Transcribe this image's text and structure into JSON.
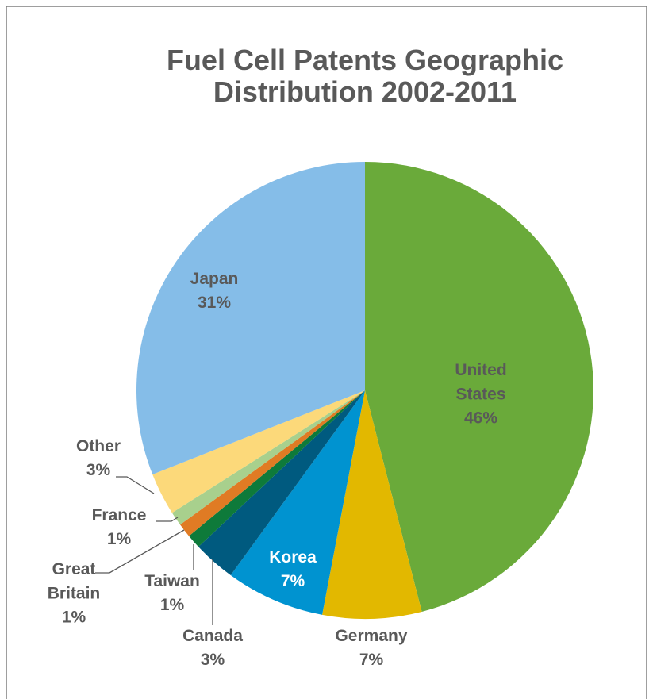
{
  "chart_data": {
    "type": "pie",
    "title": "Fuel Cell Patents Geographic Distribution 2002-2011",
    "categories": [
      "United States",
      "Germany",
      "Korea",
      "Canada",
      "Taiwan",
      "Great Britain",
      "France",
      "Other",
      "Japan"
    ],
    "values": [
      46,
      7,
      7,
      3,
      1,
      1,
      1,
      3,
      31
    ],
    "value_labels": [
      "46%",
      "7%",
      "7%",
      "3%",
      "1%",
      "1%",
      "1%",
      "3%",
      "31%"
    ],
    "colors": [
      "#6aaa3a",
      "#e2b800",
      "#0093d0",
      "#005a7f",
      "#0e7a3a",
      "#e07b24",
      "#a8d08d",
      "#fcd97a",
      "#85bde8"
    ]
  }
}
